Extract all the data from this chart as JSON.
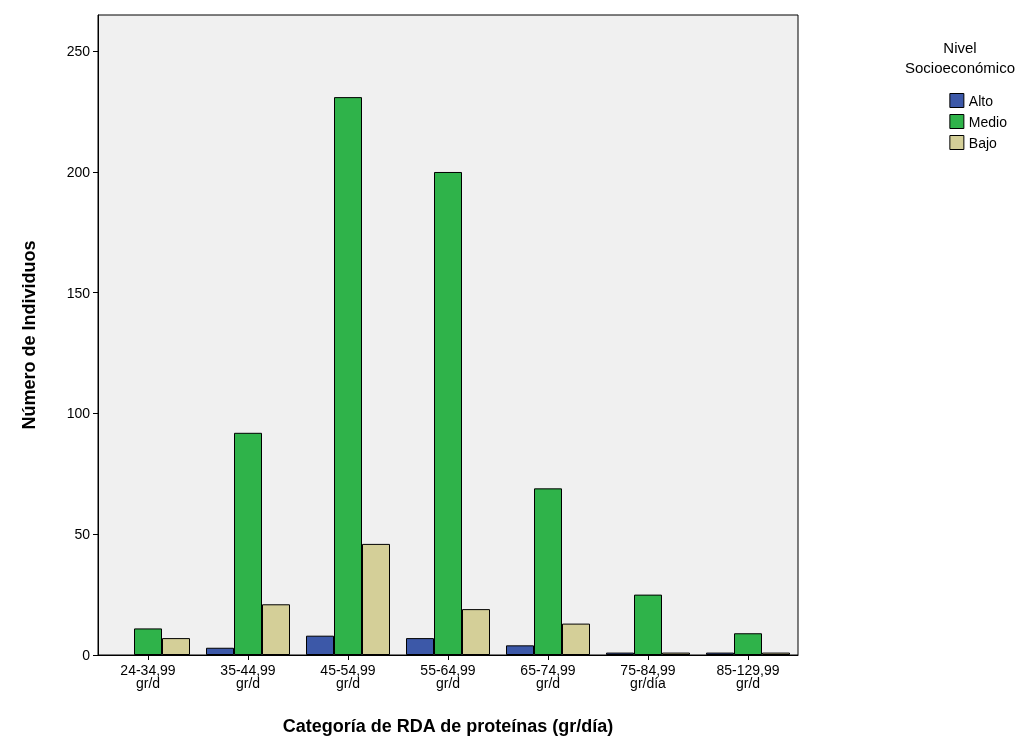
{
  "chart_data": {
    "type": "bar",
    "xlabel": "Categoría de RDA de proteínas (gr/día)",
    "ylabel": "Número de Individuos",
    "legend_title": "Nivel\nSocioeconómico",
    "categories": [
      "24-34,99\ngr/d",
      "35-44,99\ngr/d",
      "45-54,99\ngr/d",
      "55-64,99\ngr/d",
      "65-74,99\ngr/d",
      "75-84,99\ngr/día",
      "85-129,99\ngr/d"
    ],
    "series": [
      {
        "name": "Alto",
        "color": "#3c58a8",
        "values": [
          null,
          3,
          8,
          7,
          4,
          1,
          1
        ]
      },
      {
        "name": "Medio",
        "color": "#2fb34a",
        "values": [
          11,
          92,
          231,
          200,
          69,
          25,
          9
        ]
      },
      {
        "name": "Bajo",
        "color": "#d4cf98",
        "values": [
          7,
          21,
          46,
          19,
          13,
          1,
          1
        ]
      }
    ],
    "ylim": [
      0,
      265
    ],
    "yticks": [
      0,
      50,
      100,
      150,
      200,
      250
    ],
    "grid": false,
    "legend": "top right"
  }
}
